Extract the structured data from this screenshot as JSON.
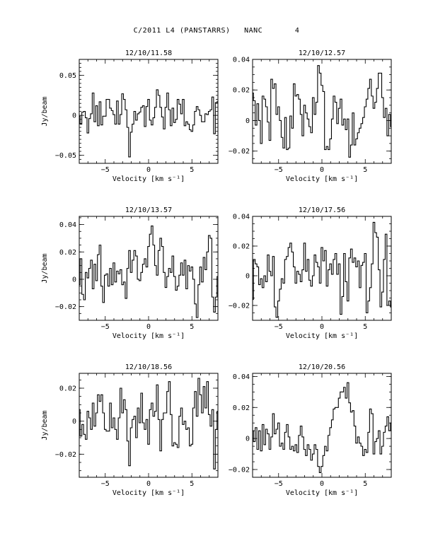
{
  "page": {
    "title": "C/2011 L4 (PANSTARRS)   NANC       4"
  },
  "chart_data": [
    {
      "type": "line",
      "title": "12/10/11.58",
      "xlabel": "Velocity [km s⁻¹]",
      "ylabel": "Jy/beam",
      "xlim": [
        -8,
        8
      ],
      "ylim": [
        -0.06,
        0.07
      ],
      "xticks": [
        -5,
        0,
        5
      ],
      "yticks": [
        -0.05,
        0,
        0.05
      ],
      "ytick_labels": [
        "−0.05",
        "0",
        "0.05"
      ],
      "x_start": -8.0,
      "x_step": 0.2,
      "values": [
        -0.001,
        -0.011,
        0.004,
        0.005,
        -0.003,
        -0.022,
        -0.004,
        0.002,
        0.028,
        -0.008,
        0.012,
        -0.013,
        0.017,
        -0.012,
        -0.001,
        -0.001,
        0.02,
        0.02,
        0.009,
        0.006,
        0.001,
        -0.011,
        0.018,
        -0.011,
        0.001,
        0.027,
        0.02,
        0.007,
        -0.015,
        -0.052,
        -0.021,
        -0.011,
        0.005,
        -0.006,
        0.002,
        0.004,
        0.01,
        0.012,
        -0.014,
        0.011,
        0.02,
        -0.006,
        -0.012,
        -0.003,
        0.01,
        0.032,
        0.025,
        0.01,
        -0.002,
        -0.017,
        0.01,
        0.028,
        0.007,
        -0.013,
        0.009,
        -0.009,
        -0.005,
        0.02,
        0.014,
        0.002,
        0.02,
        -0.013,
        -0.008,
        -0.011,
        -0.018,
        -0.02,
        -0.012,
        0.005,
        0.011,
        0.007,
        0.0,
        -0.008,
        -0.008,
        0.002,
        0.001,
        0.005,
        0.007,
        0.023,
        -0.023,
        0.016,
        0.017
      ]
    },
    {
      "type": "line",
      "title": "12/10/12.57",
      "xlabel": "Velocity [km s⁻¹]",
      "ylabel": "",
      "xlim": [
        -8,
        8
      ],
      "ylim": [
        -0.028,
        0.04
      ],
      "xticks": [
        -5,
        0,
        5
      ],
      "yticks": [
        -0.02,
        0,
        0.02,
        0.04
      ],
      "ytick_labels": [
        "−0.02",
        "0",
        "0.02",
        "0.04"
      ],
      "x_start": -8.0,
      "x_step": 0.2,
      "values": [
        0.018,
        0.013,
        -0.003,
        0.011,
        0.0,
        -0.015,
        0.016,
        0.014,
        0.009,
        -0.001,
        -0.013,
        0.027,
        0.021,
        0.024,
        0.004,
        0.009,
        0.0,
        -0.011,
        -0.018,
        0.002,
        -0.019,
        -0.018,
        0.003,
        -0.005,
        0.024,
        0.016,
        0.017,
        0.014,
        0.004,
        -0.01,
        0.01,
        0.005,
        0.001,
        -0.004,
        -0.008,
        0.015,
        0.004,
        0.012,
        0.036,
        0.031,
        0.023,
        0.019,
        -0.019,
        -0.017,
        -0.019,
        -0.012,
        0.001,
        0.016,
        0.012,
        -0.002,
        0.008,
        0.014,
        -0.003,
        0.001,
        -0.006,
        0.001,
        -0.024,
        -0.016,
        0.005,
        -0.016,
        -0.012,
        -0.008,
        -0.005,
        -0.002,
        0.002,
        0.009,
        0.014,
        0.021,
        0.027,
        0.016,
        0.008,
        0.012,
        0.021,
        0.031,
        0.031,
        0.015,
        0.002,
        0.008,
        -0.01,
        0.004,
        -0.004
      ]
    },
    {
      "type": "line",
      "title": "12/10/13.57",
      "xlabel": "Velocity [km s⁻¹]",
      "ylabel": "Jy/beam",
      "xlim": [
        -8,
        8
      ],
      "ylim": [
        -0.03,
        0.046
      ],
      "xticks": [
        -5,
        0,
        5
      ],
      "yticks": [
        -0.02,
        0,
        0.02,
        0.04
      ],
      "ytick_labels": [
        "−0.02",
        "0",
        "0.02",
        "0.04"
      ],
      "x_start": -8.0,
      "x_step": 0.2,
      "values": [
        -0.004,
        0.015,
        -0.011,
        -0.015,
        0.005,
        0.001,
        0.008,
        0.014,
        -0.007,
        0.011,
        -0.001,
        0.018,
        0.025,
        -0.005,
        -0.017,
        0.003,
        0.004,
        -0.005,
        0.008,
        -0.004,
        0.012,
        -0.002,
        0.006,
        0.004,
        0.007,
        -0.004,
        -0.002,
        -0.014,
        0.008,
        0.021,
        0.005,
        0.014,
        0.021,
        0.017,
        0.0,
        -0.001,
        0.005,
        0.011,
        0.015,
        0.009,
        0.024,
        0.033,
        0.039,
        0.025,
        0.01,
        0.003,
        0.021,
        0.03,
        0.024,
        0.005,
        -0.006,
        0.002,
        0.008,
        0.005,
        0.017,
        0.002,
        -0.008,
        -0.005,
        0.003,
        0.012,
        0.003,
        0.014,
        -0.007,
        0.01,
        0.006,
        0.009,
        0.0,
        -0.018,
        -0.028,
        -0.004,
        0.009,
        -0.002,
        0.016,
        0.007,
        0.02,
        0.032,
        0.03,
        -0.013,
        -0.024,
        -0.013,
        0.002
      ]
    },
    {
      "type": "line",
      "title": "12/10/17.56",
      "xlabel": "Velocity [km s⁻¹]",
      "ylabel": "",
      "xlim": [
        -8,
        8
      ],
      "ylim": [
        -0.03,
        0.04
      ],
      "xticks": [
        -5,
        0,
        5
      ],
      "yticks": [
        -0.02,
        0,
        0.02,
        0.04
      ],
      "ytick_labels": [
        "−0.02",
        "0",
        "0.02",
        "0.04"
      ],
      "x_start": -8.0,
      "x_step": 0.2,
      "values": [
        -0.016,
        0.011,
        0.008,
        0.006,
        -0.006,
        -0.002,
        -0.008,
        0.0,
        -0.004,
        0.014,
        0.003,
        0.0,
        0.013,
        -0.021,
        -0.028,
        -0.017,
        -0.009,
        -0.002,
        -0.005,
        0.011,
        0.013,
        0.019,
        0.022,
        0.016,
        0.006,
        -0.005,
        0.003,
        0.001,
        -0.004,
        0.004,
        0.022,
        0.003,
        0.011,
        -0.003,
        -0.007,
        0.0,
        0.014,
        0.009,
        0.006,
        -0.005,
        0.019,
        0.01,
        0.017,
        -0.007,
        0.004,
        0.008,
        0.001,
        0.011,
        0.015,
        0.001,
        0.008,
        -0.026,
        -0.014,
        0.015,
        -0.004,
        -0.017,
        0.012,
        0.018,
        0.009,
        0.012,
        0.006,
        0.01,
        -0.008,
        0.007,
        0.009,
        0.015,
        -0.025,
        -0.017,
        -0.008,
        0.008,
        0.036,
        0.029,
        0.026,
        0.004,
        -0.021,
        -0.011,
        0.011,
        0.028,
        -0.02,
        -0.017,
        -0.021
      ]
    },
    {
      "type": "line",
      "title": "12/10/18.56",
      "xlabel": "Velocity [km s⁻¹]",
      "ylabel": "Jy/beam",
      "xlim": [
        -8,
        8
      ],
      "ylim": [
        -0.034,
        0.029
      ],
      "xticks": [
        -5,
        0,
        5
      ],
      "yticks": [
        -0.02,
        0,
        0.02
      ],
      "ytick_labels": [
        "−0.02",
        "0",
        "0.02"
      ],
      "x_start": -8.0,
      "x_step": 0.2,
      "values": [
        0.007,
        -0.009,
        -0.002,
        -0.008,
        -0.011,
        0.006,
        0.002,
        -0.005,
        0.011,
        -0.003,
        0.005,
        0.016,
        0.012,
        0.016,
        0.005,
        -0.005,
        -0.006,
        -0.006,
        0.011,
        -0.004,
        0.002,
        -0.005,
        -0.011,
        0.002,
        0.02,
        0.005,
        0.013,
        0.007,
        -0.012,
        -0.027,
        -0.004,
        0.001,
        0.003,
        -0.01,
        0.008,
        -0.001,
        0.017,
        -0.001,
        -0.005,
        0.001,
        -0.014,
        0.007,
        0.011,
        0.003,
        0.006,
        0.022,
        0.001,
        -0.018,
        0.001,
        0.005,
        0.005,
        0.018,
        0.024,
        0.004,
        -0.015,
        -0.013,
        -0.014,
        -0.016,
        0.003,
        0.008,
        -0.002,
        0.0,
        -0.005,
        -0.004,
        -0.015,
        -0.014,
        0.008,
        0.018,
        0.003,
        0.026,
        0.016,
        0.005,
        0.021,
        0.008,
        0.024,
        0.004,
        -0.003,
        0.007,
        -0.029,
        -0.005,
        0.006
      ]
    },
    {
      "type": "line",
      "title": "12/10/20.56",
      "xlabel": "Velocity [km s⁻¹]",
      "ylabel": "",
      "xlim": [
        -8,
        8
      ],
      "ylim": [
        -0.025,
        0.042
      ],
      "xticks": [
        -5,
        0,
        5
      ],
      "yticks": [
        -0.02,
        0,
        0.02,
        0.04
      ],
      "ytick_labels": [
        "−0.02",
        "0",
        "0.02",
        "0.04"
      ],
      "x_start": -8.0,
      "x_step": 0.2,
      "values": [
        0.005,
        -0.002,
        0.007,
        -0.007,
        0.005,
        -0.008,
        0.009,
        -0.004,
        0.006,
        0.003,
        -0.007,
        0.001,
        0.016,
        0.003,
        0.006,
        0.01,
        -0.005,
        -0.003,
        -0.007,
        0.004,
        0.009,
        0.001,
        -0.007,
        -0.005,
        -0.008,
        -0.004,
        -0.009,
        0.002,
        0.008,
        0.001,
        -0.007,
        -0.011,
        -0.004,
        -0.007,
        -0.014,
        -0.01,
        -0.004,
        -0.007,
        -0.018,
        -0.022,
        -0.018,
        -0.011,
        -0.005,
        -0.008,
        0.002,
        0.007,
        0.012,
        0.019,
        0.02,
        0.02,
        0.026,
        0.03,
        0.03,
        0.033,
        0.026,
        0.036,
        0.023,
        0.017,
        0.018,
        0.008,
        -0.003,
        0.001,
        -0.003,
        -0.005,
        -0.011,
        -0.007,
        -0.009,
        0.004,
        0.019,
        0.016,
        -0.01,
        -0.002,
        0.0,
        0.005,
        -0.01,
        -0.005,
        0.004,
        0.008,
        0.014,
        0.005,
        0.01
      ]
    }
  ]
}
